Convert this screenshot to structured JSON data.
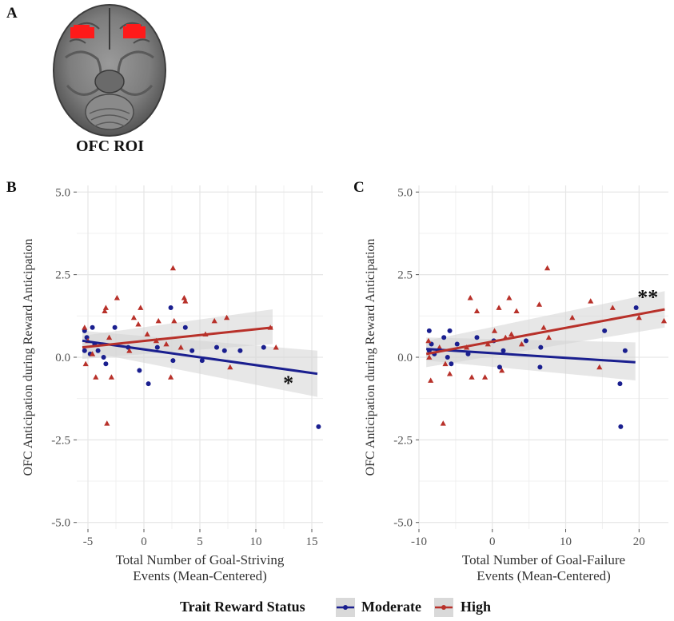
{
  "panels": {
    "a": "A",
    "b": "B",
    "c": "C"
  },
  "roi_label": "OFC ROI",
  "legend": {
    "title": "Trait Reward Status",
    "moderate": "Moderate",
    "high": "High"
  },
  "colors": {
    "moderate": "#1a1f8f",
    "high": "#b8312a",
    "grid": "#e6e6e6",
    "band": "#d3d3d3",
    "roi": "#ff1a1a"
  },
  "chart_data": [
    {
      "type": "scatter",
      "id": "B",
      "ylabel": "OFC Anticipation during Reward Anticipation",
      "xlabel": [
        "Total Number of Goal-Striving",
        "Events (Mean-Centered)"
      ],
      "xlim": [
        -6,
        16
      ],
      "ylim": [
        -5.2,
        5.2
      ],
      "xticks": [
        -5,
        0,
        5,
        10,
        15
      ],
      "xtick_labels": [
        "-5",
        "0",
        "5",
        "10",
        "15"
      ],
      "yticks": [
        -5,
        -2.5,
        0,
        2.5,
        5
      ],
      "ytick_labels": [
        "-5.0",
        "-2.5",
        "0.0",
        "2.5",
        "5.0"
      ],
      "significance": "*",
      "sig_at": [
        12.9,
        -0.8
      ],
      "series": [
        {
          "name": "Moderate",
          "marker": "circle",
          "points": [
            [
              -5.3,
              0.8
            ],
            [
              -5.3,
              0.2
            ],
            [
              -5.1,
              0.6
            ],
            [
              -4.8,
              0.1
            ],
            [
              -4.6,
              0.9
            ],
            [
              -4.4,
              0.4
            ],
            [
              -4.1,
              0.2
            ],
            [
              -3.6,
              0.0
            ],
            [
              -3.4,
              -0.2
            ],
            [
              -2.6,
              0.9
            ],
            [
              -1.4,
              0.3
            ],
            [
              -0.4,
              -0.4
            ],
            [
              0.4,
              -0.8
            ],
            [
              1.2,
              0.3
            ],
            [
              2.4,
              1.5
            ],
            [
              2.6,
              -0.1
            ],
            [
              3.7,
              0.9
            ],
            [
              4.3,
              0.2
            ],
            [
              5.2,
              -0.1
            ],
            [
              6.5,
              0.3
            ],
            [
              7.2,
              0.2
            ],
            [
              8.6,
              0.2
            ],
            [
              10.7,
              0.3
            ],
            [
              15.6,
              -2.1
            ]
          ]
        },
        {
          "name": "High",
          "marker": "triangle",
          "points": [
            [
              -5.3,
              0.9
            ],
            [
              -5.2,
              -0.2
            ],
            [
              -5.0,
              0.5
            ],
            [
              -4.6,
              0.1
            ],
            [
              -4.3,
              -0.6
            ],
            [
              -3.5,
              1.4
            ],
            [
              -3.4,
              1.5
            ],
            [
              -3.3,
              -2.0
            ],
            [
              -3.1,
              0.6
            ],
            [
              -2.9,
              -0.6
            ],
            [
              -2.4,
              1.8
            ],
            [
              -1.3,
              0.2
            ],
            [
              -0.9,
              1.2
            ],
            [
              -0.5,
              1.0
            ],
            [
              -0.3,
              1.5
            ],
            [
              0.3,
              0.7
            ],
            [
              1.1,
              0.5
            ],
            [
              1.3,
              1.1
            ],
            [
              2.0,
              0.4
            ],
            [
              2.4,
              -0.6
            ],
            [
              2.6,
              2.7
            ],
            [
              2.7,
              1.1
            ],
            [
              3.3,
              0.3
            ],
            [
              3.6,
              1.8
            ],
            [
              3.7,
              1.7
            ],
            [
              5.5,
              0.7
            ],
            [
              6.3,
              1.1
            ],
            [
              7.4,
              1.2
            ],
            [
              7.7,
              -0.3
            ],
            [
              11.3,
              0.9
            ],
            [
              11.8,
              0.3
            ]
          ]
        }
      ],
      "fits": [
        {
          "name": "Moderate",
          "x": [
            -5.5,
            15.5
          ],
          "y": [
            0.5,
            -0.5
          ],
          "band_lo_start": 0.2,
          "band_hi_start": 0.8,
          "band_lo_end": -1.2,
          "band_hi_end": 0.2
        },
        {
          "name": "High",
          "x": [
            -5.5,
            11.5
          ],
          "y": [
            0.3,
            0.9
          ],
          "band_lo_start": -0.05,
          "band_hi_start": 0.65,
          "band_lo_end": 0.4,
          "band_hi_end": 1.45
        }
      ]
    },
    {
      "type": "scatter",
      "id": "C",
      "ylabel": "OFC Anticipation during Reward Anticipation",
      "xlabel": [
        "Total Number of Goal-Failure",
        "Events (Mean-Centered)"
      ],
      "xlim": [
        -10,
        24
      ],
      "ylim": [
        -5.2,
        5.2
      ],
      "xticks": [
        -10,
        0,
        10,
        20
      ],
      "xtick_labels": [
        "-10",
        "0",
        "10",
        "20"
      ],
      "yticks": [
        -5,
        -2.5,
        0,
        2.5,
        5
      ],
      "ytick_labels": [
        "-5.0",
        "-2.5",
        "0.0",
        "2.5",
        "5.0"
      ],
      "significance": "**",
      "sig_at": [
        21.2,
        1.8
      ],
      "series": [
        {
          "name": "Moderate",
          "marker": "circle",
          "points": [
            [
              -8.6,
              0.8
            ],
            [
              -8.6,
              0.2
            ],
            [
              -8.3,
              0.4
            ],
            [
              -7.9,
              0.1
            ],
            [
              -7.4,
              0.2
            ],
            [
              -6.6,
              0.6
            ],
            [
              -6.1,
              0.0
            ],
            [
              -5.8,
              0.8
            ],
            [
              -5.6,
              -0.2
            ],
            [
              -4.8,
              0.4
            ],
            [
              -3.3,
              0.1
            ],
            [
              -2.1,
              0.6
            ],
            [
              0.2,
              0.5
            ],
            [
              1.0,
              -0.3
            ],
            [
              1.5,
              0.2
            ],
            [
              4.6,
              0.5
            ],
            [
              6.5,
              -0.3
            ],
            [
              6.6,
              0.3
            ],
            [
              15.3,
              0.8
            ],
            [
              17.4,
              -0.8
            ],
            [
              17.5,
              -2.1
            ],
            [
              18.1,
              0.2
            ],
            [
              19.6,
              1.5
            ]
          ]
        },
        {
          "name": "High",
          "marker": "triangle",
          "points": [
            [
              -8.7,
              0.5
            ],
            [
              -8.6,
              0.0
            ],
            [
              -8.4,
              -0.7
            ],
            [
              -7.2,
              0.3
            ],
            [
              -6.7,
              -2.0
            ],
            [
              -6.4,
              -0.2
            ],
            [
              -5.8,
              -0.5
            ],
            [
              -3.5,
              0.3
            ],
            [
              -3.0,
              1.8
            ],
            [
              -2.8,
              -0.6
            ],
            [
              -2.1,
              1.4
            ],
            [
              -1.0,
              -0.6
            ],
            [
              -0.6,
              0.4
            ],
            [
              0.3,
              0.8
            ],
            [
              0.9,
              1.5
            ],
            [
              1.3,
              -0.4
            ],
            [
              1.8,
              0.6
            ],
            [
              2.3,
              1.8
            ],
            [
              2.6,
              0.7
            ],
            [
              3.3,
              1.4
            ],
            [
              4.0,
              0.4
            ],
            [
              6.4,
              1.6
            ],
            [
              7.0,
              0.9
            ],
            [
              7.5,
              2.7
            ],
            [
              7.7,
              0.6
            ],
            [
              10.9,
              1.2
            ],
            [
              13.4,
              1.7
            ],
            [
              14.6,
              -0.3
            ],
            [
              16.4,
              1.5
            ],
            [
              20.0,
              1.2
            ],
            [
              23.4,
              1.1
            ]
          ]
        }
      ],
      "fits": [
        {
          "name": "Moderate",
          "x": [
            -9.0,
            19.5
          ],
          "y": [
            0.25,
            -0.15
          ],
          "band_lo_start": -0.1,
          "band_hi_start": 0.6,
          "band_lo_end": -0.7,
          "band_hi_end": 0.45
        },
        {
          "name": "High",
          "x": [
            -9.0,
            23.5
          ],
          "y": [
            0.1,
            1.45
          ],
          "band_lo_start": -0.3,
          "band_hi_start": 0.5,
          "band_lo_end": 0.9,
          "band_hi_end": 2.0
        }
      ]
    }
  ]
}
